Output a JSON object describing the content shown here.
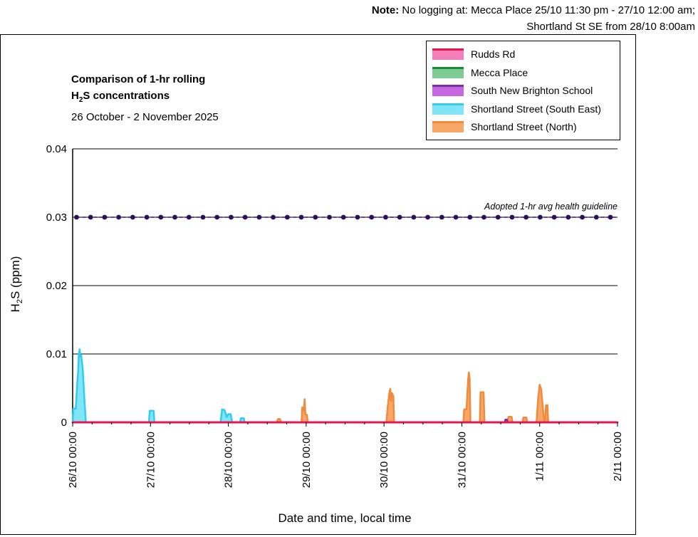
{
  "note": {
    "prefix": "Note:",
    "line1": " No logging at: Mecca Place 25/10 11:30 pm - 27/10 12:00 am;",
    "line2": "Shortland St SE from 28/10 8:00am"
  },
  "title_line1": "Comparison of 1-hr rolling",
  "title_line2_pre": "H",
  "title_line2_sub": "2",
  "title_line2_post": "S concentrations",
  "subtitle": "26 October - 2 November 2025",
  "legend": [
    {
      "label": "Rudds Rd",
      "fill": "#f47fb8",
      "edge": "#e8154f"
    },
    {
      "label": "Mecca Place",
      "fill": "#7fcc93",
      "edge": "#1a8a3a"
    },
    {
      "label": "South New Brighton School",
      "fill": "#c666e0",
      "edge": "#7a2da8"
    },
    {
      "label": "Shortland Street (South East)",
      "fill": "#7fe5f7",
      "edge": "#33ccee"
    },
    {
      "label": "Shortland Street (North)",
      "fill": "#f7a766",
      "edge": "#f08a3c"
    }
  ],
  "chart_data": {
    "type": "area",
    "xlabel": "Date and time, local time",
    "ylabel_pre": "H",
    "ylabel_sub": "2",
    "ylabel_post": "S (ppm)",
    "ylim": [
      0,
      0.04
    ],
    "yticks": [
      "0",
      "0.01",
      "0.02",
      "0.03",
      "0.04"
    ],
    "yticks_values": [
      0,
      0.01,
      0.02,
      0.03,
      0.04
    ],
    "xlim_days": [
      0,
      7
    ],
    "xticks": [
      "26/10 00:00",
      "27/10 00:00",
      "28/10 00:00",
      "29/10 00:00",
      "30/10 00:00",
      "31/10 00:00",
      "1/11 00:00",
      "2/11 00:00"
    ],
    "grid": true,
    "guideline": {
      "label": "Adopted 1-hr avg health guideline",
      "value": 0.03,
      "color": "#2e0f5a"
    },
    "series": [
      {
        "name": "Rudds Rd",
        "color": "#e8154f",
        "fill": "#f47fb8",
        "points": [
          [
            0,
            0
          ],
          [
            7,
            0
          ]
        ]
      },
      {
        "name": "Shortland Street (South East)",
        "color": "#33ccee",
        "fill": "#7fe5f7",
        "points": [
          [
            0,
            0
          ],
          [
            0.01,
            0.002
          ],
          [
            0.04,
            0.002
          ],
          [
            0.06,
            0.006
          ],
          [
            0.07,
            0.0075
          ],
          [
            0.08,
            0.01
          ],
          [
            0.09,
            0.0107
          ],
          [
            0.1,
            0.0096
          ],
          [
            0.11,
            0.0098
          ],
          [
            0.13,
            0.0078
          ],
          [
            0.15,
            0.0035
          ],
          [
            0.17,
            0.0
          ],
          [
            0.98,
            0
          ],
          [
            0.99,
            0.0017
          ],
          [
            1.04,
            0.0017
          ],
          [
            1.05,
            0
          ],
          [
            1.9,
            0
          ],
          [
            1.92,
            0.0019
          ],
          [
            1.95,
            0.0018
          ],
          [
            1.98,
            0.0008
          ],
          [
            2.0,
            0.0012
          ],
          [
            2.03,
            0.0012
          ],
          [
            2.05,
            0
          ],
          [
            2.15,
            0
          ],
          [
            2.16,
            0.0006
          ],
          [
            2.2,
            0.0006
          ],
          [
            2.21,
            0
          ],
          [
            7,
            0
          ]
        ]
      },
      {
        "name": "Shortland Street (North)",
        "color": "#f08a3c",
        "fill": "#f7a766",
        "points": [
          [
            0,
            0
          ],
          [
            2.62,
            0
          ],
          [
            2.64,
            0.0005
          ],
          [
            2.66,
            0.0005
          ],
          [
            2.68,
            0
          ],
          [
            2.94,
            0
          ],
          [
            2.95,
            0.0022
          ],
          [
            2.97,
            0.0017
          ],
          [
            2.98,
            0.0034
          ],
          [
            2.99,
            0.0012
          ],
          [
            3.01,
            0.0011
          ],
          [
            3.02,
            0
          ],
          [
            4.03,
            0
          ],
          [
            4.05,
            0.0025
          ],
          [
            4.07,
            0.0044
          ],
          [
            4.08,
            0.0049
          ],
          [
            4.09,
            0.0031
          ],
          [
            4.1,
            0.0043
          ],
          [
            4.12,
            0.0038
          ],
          [
            4.13,
            0
          ],
          [
            5.02,
            0
          ],
          [
            5.03,
            0.0019
          ],
          [
            5.06,
            0.0019
          ],
          [
            5.08,
            0.0062
          ],
          [
            5.09,
            0.0073
          ],
          [
            5.1,
            0.0064
          ],
          [
            5.11,
            0
          ],
          [
            5.23,
            0
          ],
          [
            5.24,
            0.0044
          ],
          [
            5.28,
            0.0044
          ],
          [
            5.29,
            0
          ],
          [
            5.58,
            0
          ],
          [
            5.6,
            0.0008
          ],
          [
            5.64,
            0.0008
          ],
          [
            5.65,
            0
          ],
          [
            5.78,
            0
          ],
          [
            5.79,
            0.0007
          ],
          [
            5.83,
            0.0007
          ],
          [
            5.84,
            0
          ],
          [
            5.96,
            0
          ],
          [
            5.98,
            0.0035
          ],
          [
            6.0,
            0.0055
          ],
          [
            6.02,
            0.0048
          ],
          [
            6.04,
            0.0022
          ],
          [
            6.06,
            0
          ],
          [
            6.07,
            0
          ],
          [
            6.08,
            0.0025
          ],
          [
            6.1,
            0.0025
          ],
          [
            6.11,
            0
          ],
          [
            7,
            0
          ]
        ]
      },
      {
        "name": "South New Brighton School",
        "color": "#7a2da8",
        "fill": "#c666e0",
        "points": [
          [
            0,
            0
          ],
          [
            5.55,
            0
          ],
          [
            5.56,
            0.0004
          ],
          [
            5.58,
            0.0004
          ],
          [
            5.59,
            0
          ],
          [
            7,
            0
          ]
        ]
      }
    ]
  }
}
